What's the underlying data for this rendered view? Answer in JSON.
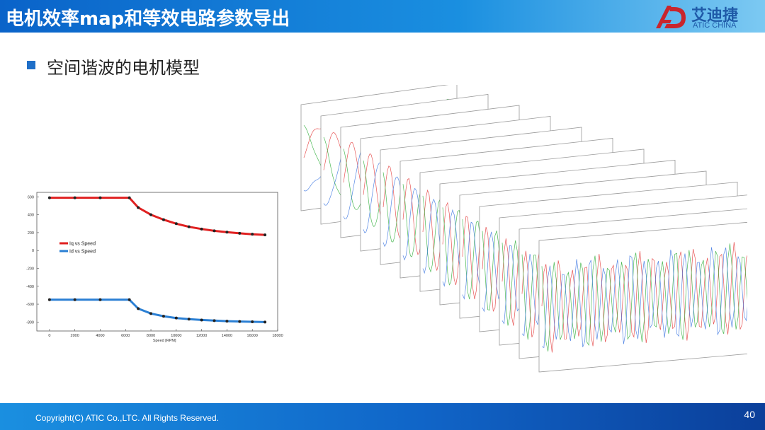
{
  "header": {
    "title": "电机效率map和等效电路参数导出"
  },
  "logo": {
    "name_cn": "艾迪捷",
    "name_en": "ATIC CHINA",
    "mark_color": "#c9252c"
  },
  "slide": {
    "bullet": "空间谐波的电机模型"
  },
  "footer": {
    "copyright": "Copyright(C) ATIC Co.,LTC. All Rights Reserved.",
    "page_number": "40"
  },
  "colors": {
    "accent": "#1f6fc8",
    "iq": "#e02020",
    "id": "#2a7fd4"
  },
  "chart_data": {
    "type": "line",
    "title": "",
    "xlabel": "Speed [RPM]",
    "ylabel": "",
    "xlim": [
      -1000,
      18000
    ],
    "ylim": [
      -900,
      650
    ],
    "x_ticks": [
      0,
      2000,
      4000,
      6000,
      8000,
      10000,
      12000,
      14000,
      16000,
      18000
    ],
    "y_ticks": [
      600,
      400,
      200,
      0,
      -200,
      -400,
      -600,
      -800
    ],
    "legend_position": "middle-left",
    "series": [
      {
        "name": "Iq vs Speed",
        "color": "#e02020",
        "x": [
          0,
          2000,
          4000,
          6300,
          7000,
          8000,
          9000,
          10000,
          11000,
          12000,
          13000,
          14000,
          15000,
          16000,
          17000
        ],
        "y": [
          590,
          590,
          590,
          590,
          480,
          400,
          345,
          300,
          265,
          240,
          220,
          205,
          192,
          182,
          175
        ]
      },
      {
        "name": "Id vs Speed",
        "color": "#2a7fd4",
        "x": [
          0,
          2000,
          4000,
          6300,
          7000,
          8000,
          9000,
          10000,
          11000,
          12000,
          13000,
          14000,
          15000,
          16000,
          17000
        ],
        "y": [
          -550,
          -550,
          -550,
          -550,
          -650,
          -705,
          -735,
          -755,
          -768,
          -777,
          -784,
          -790,
          -794,
          -797,
          -800
        ]
      }
    ]
  },
  "waveforms": {
    "count": 13
  }
}
